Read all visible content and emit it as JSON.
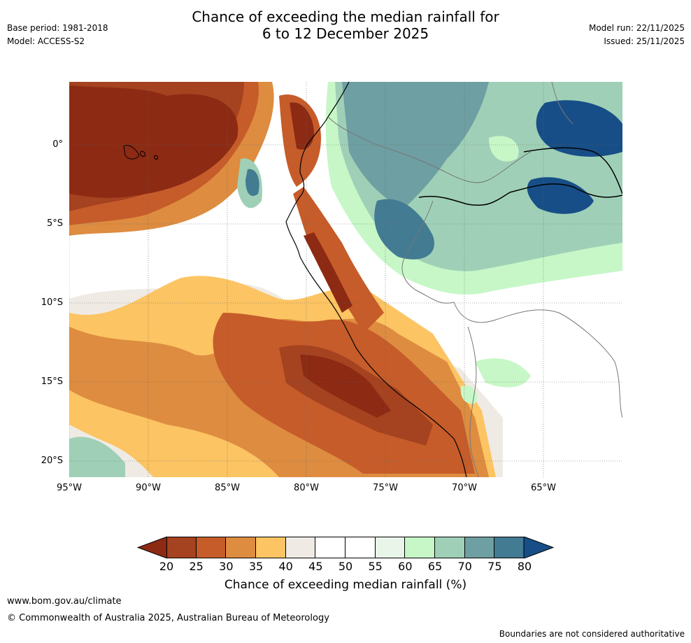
{
  "header": {
    "title_line1": "Chance of exceeding the median rainfall for",
    "title_line2": "6 to 12 December 2025",
    "base_period": "Base period: 1981-2018",
    "model": "Model: ACCESS-S2",
    "model_run": "Model run: 22/11/2025",
    "issued": "Issued: 25/11/2025"
  },
  "map": {
    "lat_labels": [
      "0°",
      "5°S",
      "10°S",
      "15°S",
      "20°S"
    ],
    "lon_labels": [
      "95°W",
      "90°W",
      "85°W",
      "80°W",
      "75°W",
      "70°W",
      "65°W"
    ],
    "lat_values": [
      0,
      -5,
      -10,
      -15,
      -20
    ],
    "lon_values": [
      -95,
      -90,
      -85,
      -80,
      -75,
      -70,
      -65
    ],
    "extent": {
      "lon_min": -95,
      "lon_max": -60,
      "lat_min": -21,
      "lat_max": 4
    },
    "colors": {
      "lt20": "#8c2a14",
      "c20": "#a5421f",
      "c25": "#c65c2a",
      "c30": "#dd8c40",
      "c35": "#fcc462",
      "c40": "#efebe4",
      "c45": "#ffffff",
      "c50": "#ffffff",
      "c55": "#e8f5e8",
      "c60": "#c7f7c7",
      "c65": "#9fd0b7",
      "c70": "#6e9fa2",
      "c75": "#427b92",
      "gt80": "#174e87"
    }
  },
  "colorbar": {
    "ticks": [
      "20",
      "25",
      "30",
      "35",
      "40",
      "45",
      "50",
      "55",
      "60",
      "65",
      "70",
      "75",
      "80"
    ],
    "colors": [
      "#a5421f",
      "#c65c2a",
      "#dd8c40",
      "#fcc462",
      "#efebe4",
      "#ffffff",
      "#ffffff",
      "#e8f5e8",
      "#c7f7c7",
      "#9fd0b7",
      "#6e9fa2",
      "#427b92"
    ],
    "low_color": "#8c2a14",
    "high_color": "#174e87",
    "label": "Chance of exceeding median rainfall (%)"
  },
  "footer": {
    "url": "www.bom.gov.au/climate",
    "copyright": "© Commonwealth of Australia 2025, Australian Bureau of Meteorology",
    "disclaimer": "Boundaries are not considered authoritative"
  }
}
